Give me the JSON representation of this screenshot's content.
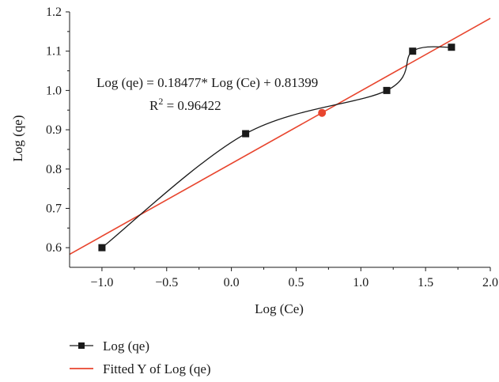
{
  "chart_data": {
    "type": "scatter",
    "xlabel": "Log (Ce)",
    "ylabel": "Log (qe)",
    "xlim": [
      -1.25,
      2.0
    ],
    "ylim": [
      0.55,
      1.2
    ],
    "xticks": [
      -1.0,
      -0.5,
      0.0,
      0.5,
      1.0,
      1.5,
      2.0
    ],
    "xtick_labels": [
      "−1.0",
      "−0.5",
      "0.0",
      "0.5",
      "1.0",
      "1.5",
      "2.0"
    ],
    "yticks": [
      0.6,
      0.7,
      0.8,
      0.9,
      1.0,
      1.1,
      1.2
    ],
    "ytick_labels": [
      "0.6",
      "0.7",
      "0.8",
      "0.9",
      "1.0",
      "1.1",
      "1.2"
    ],
    "series": [
      {
        "name": "Log (qe)",
        "kind": "line+markers",
        "color": "#1a1a1a",
        "marker": "square",
        "smooth": true,
        "x": [
          -1.0,
          0.11,
          1.2,
          1.4,
          1.7
        ],
        "y": [
          0.6,
          0.89,
          1.0,
          1.1,
          1.11
        ]
      },
      {
        "name": "Fitted Y of Log (qe)",
        "kind": "line",
        "color": "#e8452e",
        "slope": 0.18477,
        "intercept": 0.81399,
        "x_range": [
          -1.25,
          2.0
        ],
        "highlight_point": {
          "x": 0.7,
          "y": 0.943
        }
      }
    ],
    "annotations": {
      "equation": "Log (qe) = 0.18477* Log (Ce) + 0.81399",
      "r2_prefix": "R",
      "r2_sup": "2",
      "r2_value": " = 0.96422"
    },
    "legend": {
      "position": "bottom-left",
      "entries": [
        "Log (qe)",
        "Fitted Y of Log (qe)"
      ]
    },
    "grid": false
  }
}
